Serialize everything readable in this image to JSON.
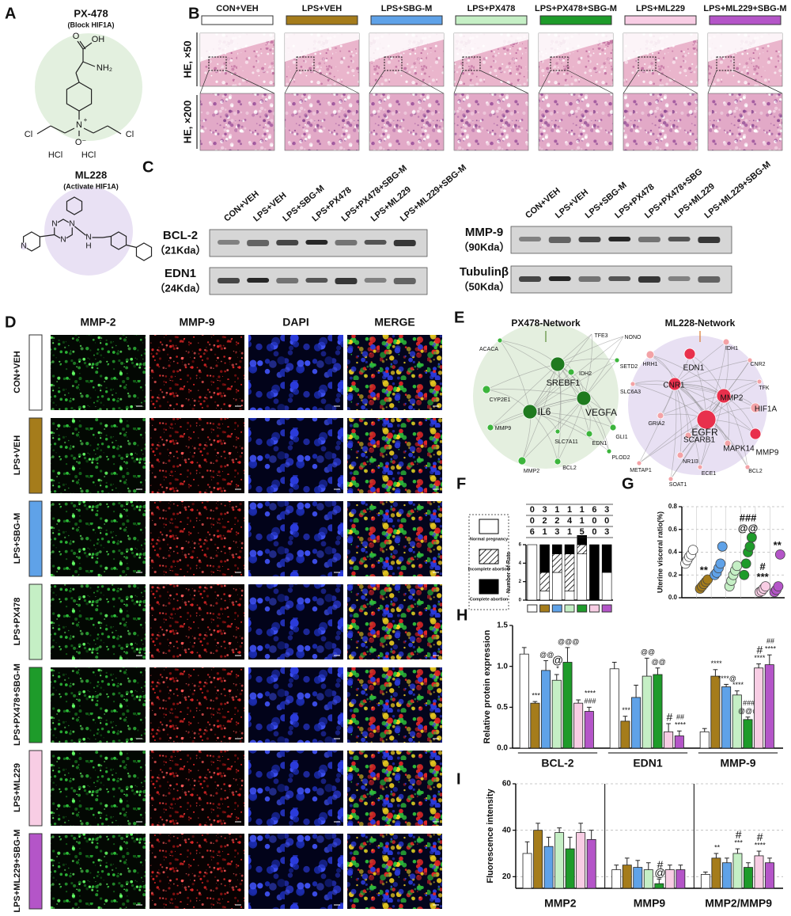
{
  "panel_labels": [
    "A",
    "B",
    "C",
    "D",
    "E",
    "F",
    "G",
    "H",
    "I"
  ],
  "compounds": [
    {
      "name": "PX-478",
      "note": "(Block HIF1A)",
      "atoms": [
        "OH",
        "O",
        "NH₂",
        "N",
        "+",
        "Cl",
        "Cl",
        "O⁻",
        "HCl",
        "HCl"
      ]
    },
    {
      "name": "ML228",
      "note": "(Activate HIF1A)",
      "atoms": [
        "N",
        "N",
        "N",
        "N",
        "N",
        "H"
      ]
    }
  ],
  "groups": [
    {
      "name": "CON+VEH",
      "color": "#ffffff"
    },
    {
      "name": "LPS+VEH",
      "color": "#a57c1b"
    },
    {
      "name": "LPS+SBG-M",
      "color": "#5fa2e8"
    },
    {
      "name": "LPS+PX478",
      "color": "#c5efc5"
    },
    {
      "name": "LPS+PX478+SBG-M",
      "color": "#1e9b2a"
    },
    {
      "name": "LPS+ML229",
      "color": "#f8cde4"
    },
    {
      "name": "LPS+ML229+SBG-M",
      "color": "#b455c8"
    }
  ],
  "histology": {
    "rows": [
      "HE, ×50",
      "HE, ×200"
    ]
  },
  "western_blot": {
    "left": {
      "lanes": [
        "CON+VEH",
        "LPS+VEH",
        "LPS+SBG-M",
        "LPS+PX478",
        "LPS+PX478+SBG-M",
        "LPS+ML229",
        "LPS+ML229+SBG-M"
      ],
      "proteins": [
        {
          "name": "BCL-2",
          "size": "（21Kda）"
        },
        {
          "name": "EDN1",
          "size": "（24Kda）"
        }
      ]
    },
    "right": {
      "lanes": [
        "CON+VEH",
        "LPS+VEH",
        "LPS+SBG-M",
        "LPS+PX478",
        "LPS+PX478+SBG",
        "LPS+ML229",
        "LPS+ML229+SBG-M"
      ],
      "proteins": [
        {
          "name": "MMP-9",
          "size": "（90Kda）"
        },
        {
          "name": "Tubulinβ",
          "size": "（50Kda）"
        }
      ]
    }
  },
  "immunofluorescence": {
    "channels": [
      "MMP-2",
      "MMP-9",
      "DAPI",
      "MERGE"
    ]
  },
  "networks": [
    {
      "title": "PX478-Network",
      "color": "#5b8c3a",
      "nodes": [
        "ACACA",
        "TFE3",
        "NONO",
        "SETD2",
        "IDH2",
        "SREBF1",
        "CYP2E1",
        "IL6",
        "VEGFA",
        "MMP9",
        "SLC7A11",
        "EDN1",
        "GLI1",
        "PLOD2",
        "MMP2",
        "BCL2"
      ]
    },
    {
      "title": "ML228-Network",
      "color": "#d9782d",
      "nodes": [
        "IDH1",
        "CNR2",
        "HRH1",
        "EDN1",
        "SLC6A3",
        "CNR1",
        "MMP2",
        "TFK",
        "HIF1A",
        "GRIA2",
        "EGFR",
        "SCARB1",
        "MAPK14",
        "MMP9",
        "METAP1",
        "NR1I3",
        "ECE1",
        "BCL2",
        "SOAT1"
      ]
    }
  ],
  "chart_data": [
    {
      "type": "stacked_bar",
      "y_label": "Number of Rats",
      "legend": "left",
      "categories": [
        null,
        null,
        null,
        null,
        null,
        null,
        null
      ],
      "ylim": [
        0,
        6
      ],
      "yticks": [
        0,
        2,
        4,
        6
      ],
      "series": [
        {
          "name": "Normal pregnancy",
          "color": "#ffffff",
          "values": [
            6,
            1,
            3,
            1,
            5,
            0,
            3
          ]
        },
        {
          "name": "Incomplete abortion",
          "pattern": "hatched",
          "values": [
            0,
            2,
            2,
            4,
            1,
            0,
            0
          ]
        },
        {
          "name": "Complete abortion",
          "color": "#000000",
          "values": [
            0,
            3,
            1,
            1,
            1,
            6,
            3
          ]
        }
      ]
    },
    {
      "type": "dot",
      "y_label": "Uterine visceral ratio(%)",
      "grid": true,
      "ylim": [
        0,
        0.8
      ],
      "yticks": [
        {
          "value": 0,
          "label": "0.0"
        },
        0.2,
        0.4,
        0.6,
        0.8
      ],
      "series": [
        {
          "color": "#ffffff",
          "values": [
            0.3,
            0.33,
            0.36,
            0.38,
            0.42
          ]
        },
        {
          "color": "#a57c1b",
          "values": [
            0.08,
            0.1,
            0.12,
            0.14,
            0.16
          ],
          "marks": [
            "**"
          ]
        },
        {
          "color": "#5fa2e8",
          "values": [
            0.2,
            0.22,
            0.26,
            0.3,
            0.45
          ]
        },
        {
          "color": "#c5efc5",
          "values": [
            0.1,
            0.15,
            0.2,
            0.24,
            0.28
          ]
        },
        {
          "color": "#1e9b2a",
          "values": [
            0.2,
            0.3,
            0.4,
            0.45,
            0.53
          ],
          "marks": [
            "###",
            "@@"
          ]
        },
        {
          "color": "#f8cde4",
          "values": [
            0.05,
            0.06,
            0.08,
            0.1
          ],
          "marks": [
            "#",
            "***"
          ]
        },
        {
          "color": "#b455c8",
          "values": [
            0.05,
            0.07,
            0.1,
            0.38
          ],
          "marks": [
            "**"
          ]
        }
      ]
    },
    {
      "type": "grouped_bar",
      "y_label": "Relative protein expression",
      "categories": [
        "BCL-2",
        "EDN1",
        "MMP-9"
      ],
      "ylim": [
        0,
        1.5
      ],
      "yticks": [
        {
          "value": 0,
          "label": "0.0"
        },
        {
          "value": 0.5,
          "label": "0.5"
        },
        {
          "value": 1,
          "label": "1.0"
        },
        {
          "value": 1.5,
          "label": "1.5"
        }
      ],
      "series": [
        {
          "color": "#ffffff",
          "values": [
            1.15,
            0.97,
            0.2
          ],
          "errors": [
            0.08,
            0.08,
            0.04
          ],
          "marks": [
            null,
            null,
            null
          ]
        },
        {
          "color": "#a57c1b",
          "values": [
            0.55,
            0.33,
            0.88
          ],
          "errors": [
            0.02,
            0.06,
            0.08
          ],
          "marks": [
            [
              "***"
            ],
            [
              "***"
            ],
            [
              "****"
            ]
          ]
        },
        {
          "color": "#5fa2e8",
          "values": [
            0.95,
            0.62,
            0.75
          ],
          "errors": [
            0.12,
            0.15,
            0.03
          ],
          "marks": [
            [
              "@@"
            ],
            null,
            [
              "****@"
            ]
          ]
        },
        {
          "color": "#c5efc5",
          "values": [
            0.83,
            0.88,
            0.65
          ],
          "errors": [
            0.07,
            0.22,
            0.05
          ],
          "marks": [
            [
              "@",
              "*"
            ],
            [
              "@@"
            ],
            [
              "****"
            ]
          ]
        },
        {
          "color": "#1e9b2a",
          "values": [
            1.05,
            0.9,
            0.35
          ],
          "errors": [
            0.18,
            0.08,
            0.03
          ],
          "marks": [
            [
              "@@@"
            ],
            [
              "@@"
            ],
            [
              "###",
              "@@@"
            ]
          ]
        },
        {
          "color": "#f8cde4",
          "values": [
            0.55,
            0.2,
            0.98
          ],
          "errors": [
            0.04,
            0.1,
            0.05
          ],
          "marks": [
            null,
            [
              "#"
            ],
            [
              "#",
              "****"
            ]
          ]
        },
        {
          "color": "#b455c8",
          "values": [
            0.45,
            0.15,
            1.02
          ],
          "errors": [
            0.05,
            0.06,
            0.12
          ],
          "marks": [
            [
              "****",
              "###"
            ],
            [
              "##",
              "****"
            ],
            [
              "##",
              "****"
            ]
          ]
        }
      ]
    },
    {
      "type": "grouped_bar",
      "y_label": "Fluorescence intensity",
      "grid": true,
      "separators": true,
      "categories": [
        "MMP2",
        "MMP9",
        "MMP2/MMP9"
      ],
      "ylim": [
        15,
        60
      ],
      "yticks": [
        20,
        40,
        60
      ],
      "series": [
        {
          "color": "#ffffff",
          "values": [
            30,
            23,
            21
          ],
          "errors": [
            5,
            2,
            1
          ],
          "marks": [
            null,
            null,
            null
          ]
        },
        {
          "color": "#a57c1b",
          "values": [
            40,
            25,
            28
          ],
          "errors": [
            3,
            3,
            2
          ],
          "marks": [
            null,
            null,
            [
              "**"
            ]
          ]
        },
        {
          "color": "#5fa2e8",
          "values": [
            33,
            24,
            26
          ],
          "errors": [
            4,
            3,
            2
          ],
          "marks": [
            null,
            null,
            null
          ]
        },
        {
          "color": "#c5efc5",
          "values": [
            39,
            23,
            30
          ],
          "errors": [
            2,
            3,
            2
          ],
          "marks": [
            null,
            null,
            [
              "#",
              "***"
            ]
          ]
        },
        {
          "color": "#1e9b2a",
          "values": [
            32,
            17,
            24
          ],
          "errors": [
            5,
            2,
            2
          ],
          "marks": [
            null,
            [
              "#",
              "@"
            ],
            null
          ]
        },
        {
          "color": "#f8cde4",
          "values": [
            39,
            23,
            29
          ],
          "errors": [
            4,
            2,
            2
          ],
          "marks": [
            null,
            null,
            [
              "#",
              "****"
            ]
          ]
        },
        {
          "color": "#b455c8",
          "values": [
            36,
            23,
            26
          ],
          "errors": [
            4,
            2,
            2
          ],
          "marks": [
            null,
            null,
            null
          ]
        }
      ]
    }
  ]
}
